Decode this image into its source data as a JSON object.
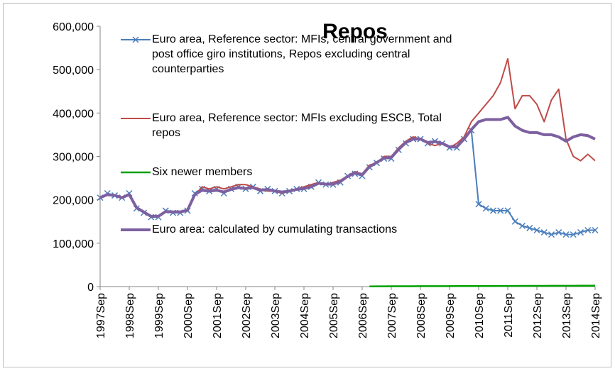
{
  "chart_data": {
    "type": "line",
    "title": "Repos",
    "categories": [
      "1997Sep",
      null,
      null,
      null,
      "1998Sep",
      null,
      null,
      null,
      "1999Sep",
      null,
      null,
      null,
      "2000Sep",
      null,
      null,
      null,
      "2001Sep",
      null,
      null,
      null,
      "2002Sep",
      null,
      null,
      null,
      "2003Sep",
      null,
      null,
      null,
      "2004Sep",
      null,
      null,
      null,
      "2005Sep",
      null,
      null,
      null,
      "2006Sep",
      null,
      null,
      null,
      "2007Sep",
      null,
      null,
      null,
      "2008Sep",
      null,
      null,
      null,
      "2009Sep",
      null,
      null,
      null,
      "2010Sep",
      null,
      null,
      null,
      "2011Sep",
      null,
      null,
      null,
      "2012Sep",
      null,
      null,
      null,
      "2013Sep",
      null,
      null,
      null,
      "2014Sep"
    ],
    "series": [
      {
        "name": "Euro area, Reference sector: MFIs, central government and post office giro institutions, Repos excluding central counterparties",
        "color": "#4a7ebb",
        "marker": "x",
        "width": 2,
        "values": [
          205000,
          215000,
          210000,
          205000,
          215000,
          180000,
          170000,
          160000,
          160000,
          175000,
          170000,
          170000,
          175000,
          215000,
          225000,
          220000,
          225000,
          215000,
          225000,
          230000,
          225000,
          230000,
          220000,
          225000,
          220000,
          215000,
          220000,
          225000,
          225000,
          230000,
          240000,
          235000,
          235000,
          240000,
          255000,
          260000,
          255000,
          275000,
          285000,
          295000,
          295000,
          315000,
          330000,
          340000,
          340000,
          330000,
          335000,
          330000,
          320000,
          320000,
          340000,
          360000,
          190000,
          180000,
          175000,
          175000,
          175000,
          150000,
          140000,
          135000,
          130000,
          125000,
          120000,
          125000,
          120000,
          120000,
          125000,
          130000,
          130000
        ]
      },
      {
        "name": "Euro area, Reference sector: MFIs excluding ESCB, Total repos",
        "color": "#be4b48",
        "marker": "none",
        "width": 2,
        "values": [
          null,
          null,
          null,
          null,
          null,
          null,
          null,
          null,
          null,
          null,
          null,
          null,
          175000,
          210000,
          230000,
          225000,
          230000,
          225000,
          230000,
          235000,
          235000,
          230000,
          225000,
          220000,
          220000,
          215000,
          220000,
          225000,
          230000,
          235000,
          240000,
          235000,
          240000,
          245000,
          255000,
          265000,
          260000,
          280000,
          285000,
          300000,
          300000,
          320000,
          335000,
          345000,
          340000,
          330000,
          325000,
          330000,
          320000,
          330000,
          345000,
          380000,
          400000,
          420000,
          440000,
          470000,
          525000,
          410000,
          440000,
          440000,
          420000,
          380000,
          430000,
          455000,
          340000,
          300000,
          290000,
          305000,
          290000
        ]
      },
      {
        "name": "Six newer members",
        "color": "#00a000",
        "marker": "none",
        "width": 2.5,
        "values": [
          null,
          null,
          null,
          null,
          null,
          null,
          null,
          null,
          null,
          null,
          null,
          null,
          null,
          null,
          null,
          null,
          null,
          null,
          null,
          null,
          null,
          null,
          null,
          null,
          null,
          null,
          null,
          null,
          null,
          null,
          null,
          null,
          null,
          null,
          null,
          null,
          null,
          500,
          600,
          700,
          800,
          800,
          900,
          900,
          1000,
          1000,
          1000,
          1100,
          1100,
          1200,
          1200,
          1200,
          1300,
          1300,
          1400,
          1400,
          1500,
          1500,
          1600,
          1600,
          1700,
          1700,
          1800,
          1800,
          1900,
          1900,
          2000,
          2000,
          2000
        ]
      },
      {
        "name": "Euro area: calculated by cumulating transactions",
        "color": "#7d60a0",
        "marker": "none",
        "width": 4,
        "values": [
          205000,
          212000,
          210000,
          205000,
          212000,
          182000,
          172000,
          162000,
          162000,
          173000,
          172000,
          172000,
          176000,
          212000,
          222000,
          220000,
          222000,
          218000,
          224000,
          228000,
          226000,
          228000,
          222000,
          224000,
          220000,
          218000,
          220000,
          224000,
          226000,
          230000,
          238000,
          236000,
          236000,
          242000,
          254000,
          262000,
          258000,
          276000,
          286000,
          296000,
          298000,
          316000,
          332000,
          340000,
          340000,
          332000,
          334000,
          330000,
          322000,
          322000,
          340000,
          362000,
          380000,
          385000,
          385000,
          385000,
          390000,
          370000,
          360000,
          355000,
          355000,
          350000,
          350000,
          345000,
          335000,
          345000,
          350000,
          348000,
          340000
        ]
      }
    ],
    "ylim": [
      0,
      600000
    ],
    "yticks": [
      0,
      {
        "value": 100000,
        "label": "100,000"
      },
      {
        "value": 200000,
        "label": "200,000"
      },
      {
        "value": 300000,
        "label": "300,000"
      },
      {
        "value": 400000,
        "label": "400,000"
      },
      {
        "value": 500000,
        "label": "500,000"
      },
      {
        "value": 600000,
        "label": "600,000"
      }
    ],
    "grid": false
  }
}
